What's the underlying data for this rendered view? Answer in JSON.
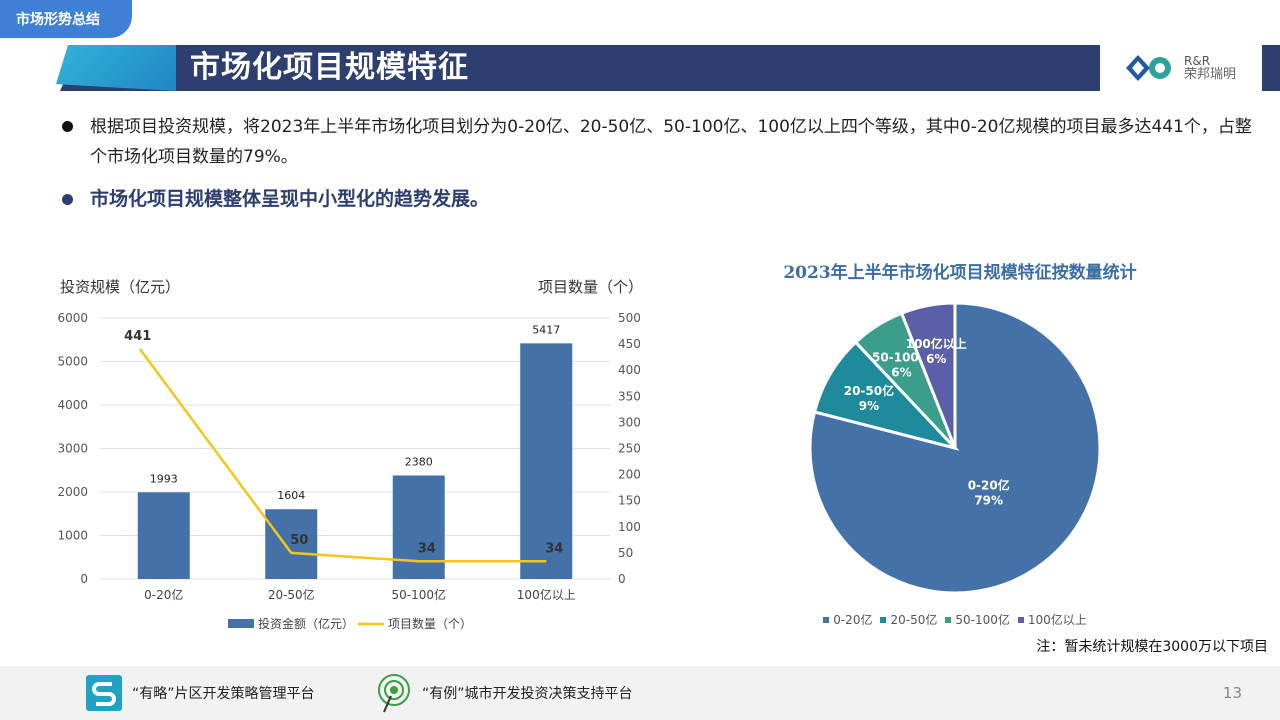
{
  "header": {
    "section_tag": "市场形势总结",
    "title": "市场化项目规模特征",
    "logo_en": "R&R",
    "logo_cn": "荣邦瑞明"
  },
  "bullets": [
    "根据项目投资规模，将2023年上半年市场化项目划分为0-20亿、20-50亿、50-100亿、100亿以上四个等级，其中0-20亿规模的项目最多达441个，占整个市场化项目数量的79%。",
    "市场化项目规模整体呈现中小型化的趋势发展。"
  ],
  "chart_data": [
    {
      "type": "bar",
      "title": "",
      "categories": [
        "0-20亿",
        "20-50亿",
        "50-100亿",
        "100亿以上"
      ],
      "ylabel": "投资规模（亿元）",
      "y2label": "项目数量（个）",
      "ylim": [
        0,
        6000
      ],
      "y2lim": [
        0,
        500
      ],
      "yticks": [
        0,
        1000,
        2000,
        3000,
        4000,
        5000,
        6000
      ],
      "y2ticks": [
        0,
        50,
        100,
        150,
        200,
        250,
        300,
        350,
        400,
        450,
        500
      ],
      "grid": true,
      "legend_position": "bottom",
      "series": [
        {
          "name": "投资金额（亿元）",
          "type": "bar",
          "axis": "left",
          "color": "#4472a8",
          "values": [
            1993,
            1604,
            2380,
            5417
          ]
        },
        {
          "name": "项目数量（个）",
          "type": "line",
          "axis": "right",
          "color": "#f5c518",
          "values": [
            441,
            50,
            34,
            34
          ]
        }
      ]
    },
    {
      "type": "pie",
      "title": "2023年上半年市场化项目规模特征按数量统计",
      "categories": [
        "0-20亿",
        "20-50亿",
        "50-100亿",
        "100亿以上"
      ],
      "values": [
        79,
        9,
        6,
        6
      ],
      "labels": [
        "79%",
        "9%",
        "6%",
        "6%"
      ],
      "colors": [
        "#4472a8",
        "#1f8a9c",
        "#3a9e8a",
        "#5a5fa8"
      ],
      "legend_position": "bottom"
    }
  ],
  "note": "注：暂未统计规模在3000万以下项目",
  "footer": {
    "item1": "“有略”片区开发策略管理平台",
    "item2": "“有例”城市开发投资决策支持平台",
    "page": "13"
  }
}
